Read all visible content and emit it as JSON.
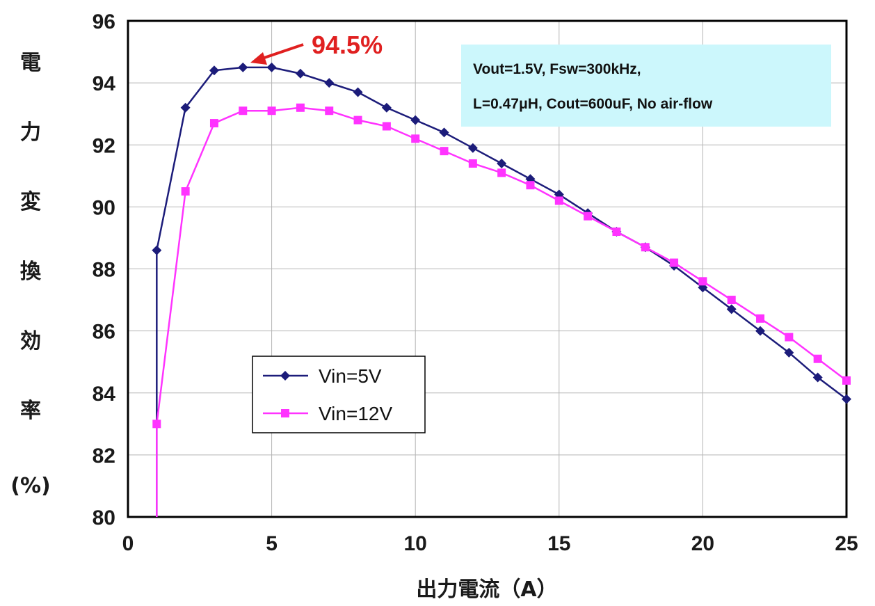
{
  "chart_data": {
    "type": "line",
    "xlabel": "出力電流（A）",
    "ylabel_chars": [
      "電",
      "力",
      "変",
      "換",
      "効",
      "率",
      "(%)"
    ],
    "xlim": [
      0,
      25
    ],
    "ylim": [
      80,
      96
    ],
    "x_ticks": [
      0,
      5,
      10,
      15,
      20,
      25
    ],
    "y_ticks": [
      80,
      82,
      84,
      86,
      88,
      90,
      92,
      94,
      96
    ],
    "grid": true,
    "legend_position": "lower-left",
    "series": [
      {
        "name": "Vin=5V",
        "color": "#1c1c7a",
        "marker": "diamond",
        "x": [
          1,
          1,
          2,
          3,
          4,
          5,
          6,
          7,
          8,
          9,
          10,
          11,
          12,
          13,
          14,
          15,
          16,
          17,
          18,
          19,
          20,
          21,
          22,
          23,
          24,
          25
        ],
        "y": [
          80,
          88.6,
          93.2,
          94.4,
          94.5,
          94.5,
          94.3,
          94.0,
          93.7,
          93.2,
          92.8,
          92.4,
          91.9,
          91.4,
          90.9,
          90.4,
          89.8,
          89.2,
          88.7,
          88.1,
          87.4,
          86.7,
          86.0,
          85.3,
          84.5,
          83.8
        ],
        "marker_from_index": 1
      },
      {
        "name": "Vin=12V",
        "color": "#ff33ff",
        "marker": "square",
        "x": [
          1,
          1,
          2,
          3,
          4,
          5,
          6,
          7,
          8,
          9,
          10,
          11,
          12,
          13,
          14,
          15,
          16,
          17,
          18,
          19,
          20,
          21,
          22,
          23,
          24,
          25
        ],
        "y": [
          80,
          83.0,
          90.5,
          92.7,
          93.1,
          93.1,
          93.2,
          93.1,
          92.8,
          92.6,
          92.2,
          91.8,
          91.4,
          91.1,
          90.7,
          90.2,
          89.7,
          89.2,
          88.7,
          88.2,
          87.6,
          87.0,
          86.4,
          85.8,
          85.1,
          84.4
        ],
        "marker_from_index": 1
      }
    ],
    "annotation": {
      "text": "94.5%",
      "color": "#e02020",
      "points_to": [
        4,
        94.5
      ]
    },
    "note_lines": [
      "Vout=1.5V, Fsw=300kHz,",
      "L=0.47μH, Cout=600uF, No air-flow"
    ],
    "note_box_color": "#ccf7fc"
  }
}
